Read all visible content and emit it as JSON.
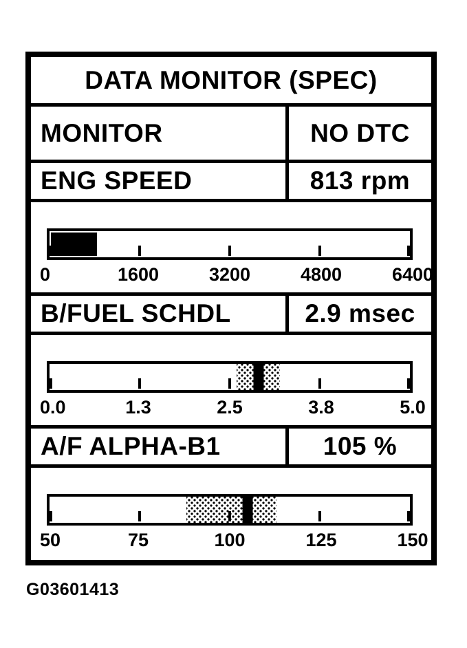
{
  "panel": {
    "title": "DATA MONITOR (SPEC)",
    "monitor_row": {
      "label": "MONITOR",
      "value": "NO DTC"
    },
    "parameters": [
      {
        "label": "ENG SPEED",
        "value": "813 rpm",
        "gauge": {
          "type": "bar",
          "min": 0,
          "max": 6400,
          "value": 813,
          "tick_labels": [
            "0",
            "1600",
            "3200",
            "4800",
            "6400"
          ]
        }
      },
      {
        "label": "B/FUEL SCHDL",
        "value": "2.9 msec",
        "gauge": {
          "type": "band-indicator",
          "min": 0,
          "max": 5,
          "value": 2.9,
          "band": [
            2.6,
            3.2
          ],
          "tick_labels": [
            "0.0",
            "1.3",
            "2.5",
            "3.8",
            "5.0"
          ]
        }
      },
      {
        "label": "A/F ALPHA-B1",
        "value": "105 %",
        "gauge": {
          "type": "band-indicator",
          "min": 50,
          "max": 150,
          "value": 105,
          "band": [
            88,
            113
          ],
          "tick_labels": [
            "50",
            "75",
            "100",
            "125",
            "150"
          ]
        }
      }
    ]
  },
  "figure_id": "G03601413",
  "colors": {
    "foreground": "#000000",
    "background": "#ffffff"
  }
}
